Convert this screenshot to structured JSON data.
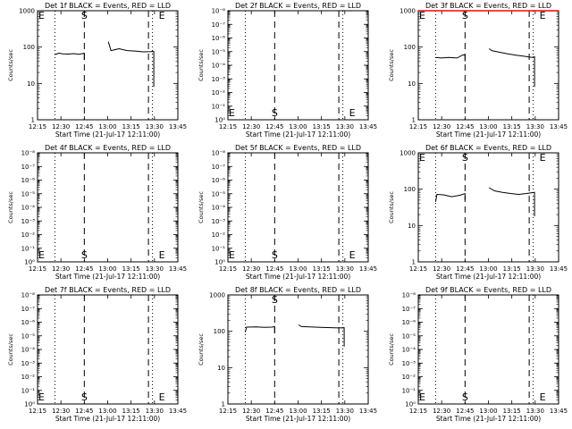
{
  "colors": {
    "events": "#000000",
    "lld": "#ff0000",
    "background": "#ffffff"
  },
  "chart_data": [
    {
      "type": "line",
      "title": "Det 1f BLACK = Events, RED = LLD",
      "xlabel": "Start Time (21-Jul-17 12:11:00)",
      "ylabel": "Counts/sec",
      "yscale": "log",
      "ylim": [
        1,
        1000
      ],
      "ytick_labels": [
        "1",
        "10",
        "100",
        "1000"
      ],
      "xticks": [
        "12:15",
        "12:30",
        "12:45",
        "13:00",
        "13:15",
        "13:30",
        "13:45"
      ],
      "xlim": [
        3,
        108
      ],
      "dotted_lines": [
        16,
        89
      ],
      "dashed_lines": [
        38,
        86
      ],
      "markers": [
        {
          "label": "E",
          "x": 3,
          "pos": "top"
        },
        {
          "label": "S",
          "x": 38,
          "pos": "top"
        },
        {
          "label": "E",
          "x": 96,
          "pos": "top"
        }
      ],
      "series": [
        {
          "color": "#000000",
          "segments": [
            [
              [
                16,
                62
              ],
              [
                19,
                68
              ],
              [
                22,
                65
              ],
              [
                26,
                64
              ],
              [
                30,
                66
              ],
              [
                34,
                63
              ],
              [
                38,
                68
              ],
              [
                38,
                45
              ]
            ],
            [
              [
                56,
                140
              ],
              [
                58,
                80
              ],
              [
                64,
                90
              ],
              [
                70,
                80
              ],
              [
                76,
                78
              ],
              [
                82,
                74
              ],
              [
                88,
                75
              ],
              [
                89,
                76
              ],
              [
                90,
                75
              ],
              [
                90,
                8
              ]
            ]
          ]
        }
      ]
    },
    {
      "type": "line",
      "title": "Det 2f BLACK = Events, RED = LLD",
      "xlabel": "Start Time (21-Jul-17 12:11:00)",
      "ylabel": "Counts/sec",
      "yscale": "log",
      "ylim": [
        0,
        1
      ],
      "ytick_labels": [
        "10⁰",
        "10⁻¹",
        "10⁻²",
        "10⁻³",
        "10⁻⁴",
        "10⁻⁵",
        "10⁻⁶",
        "10⁻⁷",
        "10⁻⁸"
      ],
      "xticks": [
        "12:15",
        "12:30",
        "12:45",
        "13:00",
        "13:15",
        "13:30",
        "13:45"
      ],
      "xlim": [
        3,
        108
      ],
      "dotted_lines": [
        16,
        89
      ],
      "dashed_lines": [
        38,
        86
      ],
      "markers": [
        {
          "label": "E",
          "x": 3,
          "pos": "bottom"
        },
        {
          "label": "S",
          "x": 38,
          "pos": "bottom"
        },
        {
          "label": "E",
          "x": 96,
          "pos": "bottom"
        }
      ],
      "series": []
    },
    {
      "type": "line",
      "title": "Det 3f BLACK = Events, RED = LLD",
      "xlabel": "Start Time (21-Jul-17 12:11:00)",
      "ylabel": "Counts/sec",
      "yscale": "log",
      "ylim": [
        1,
        1000
      ],
      "ytick_labels": [
        "1",
        "10",
        "100",
        "1000"
      ],
      "xticks": [
        "12:15",
        "12:30",
        "12:45",
        "13:00",
        "13:15",
        "13:30",
        "13:45"
      ],
      "xlim": [
        3,
        108
      ],
      "dotted_lines": [
        16,
        89
      ],
      "dashed_lines": [
        38,
        86
      ],
      "markers": [
        {
          "label": "E",
          "x": 3,
          "pos": "top"
        },
        {
          "label": "S",
          "x": 38,
          "pos": "top"
        },
        {
          "label": "E",
          "x": 96,
          "pos": "top"
        }
      ],
      "series": [
        {
          "color": "#ff0000",
          "segments": [
            [
              [
                3,
                1000
              ],
              [
                108,
                1000
              ]
            ]
          ]
        },
        {
          "color": "#000000",
          "segments": [
            [
              [
                16,
                52
              ],
              [
                20,
                50
              ],
              [
                26,
                52
              ],
              [
                32,
                50
              ],
              [
                36,
                60
              ],
              [
                38,
                62
              ],
              [
                38,
                40
              ]
            ],
            [
              [
                56,
                90
              ],
              [
                58,
                80
              ],
              [
                64,
                72
              ],
              [
                70,
                65
              ],
              [
                76,
                60
              ],
              [
                82,
                56
              ],
              [
                88,
                52
              ],
              [
                90,
                54
              ],
              [
                90,
                8
              ]
            ]
          ]
        }
      ]
    },
    {
      "type": "line",
      "title": "Det 4f BLACK = Events, RED = LLD",
      "xlabel": "Start Time (21-Jul-17 12:11:00)",
      "ylabel": "Counts/sec",
      "yscale": "log",
      "ylim": [
        0,
        1
      ],
      "ytick_labels": [
        "10⁰",
        "10⁻¹",
        "10⁻²",
        "10⁻³",
        "10⁻⁴",
        "10⁻⁵",
        "10⁻⁶",
        "10⁻⁷",
        "10⁻⁸"
      ],
      "xticks": [
        "12:15",
        "12:30",
        "12:45",
        "13:00",
        "13:15",
        "13:30",
        "13:45"
      ],
      "xlim": [
        3,
        108
      ],
      "dotted_lines": [
        16,
        89
      ],
      "dashed_lines": [
        38,
        86
      ],
      "markers": [
        {
          "label": "E",
          "x": 3,
          "pos": "bottom"
        },
        {
          "label": "S",
          "x": 38,
          "pos": "bottom"
        },
        {
          "label": "E",
          "x": 96,
          "pos": "bottom"
        }
      ],
      "series": []
    },
    {
      "type": "line",
      "title": "Det 5f BLACK = Events, RED = LLD",
      "xlabel": "Start Time (21-Jul-17 12:11:00)",
      "ylabel": "Counts/sec",
      "yscale": "log",
      "ylim": [
        0,
        1
      ],
      "ytick_labels": [
        "10⁰",
        "10⁻¹",
        "10⁻²",
        "10⁻³",
        "10⁻⁴",
        "10⁻⁵",
        "10⁻⁶",
        "10⁻⁷",
        "10⁻⁸"
      ],
      "xticks": [
        "12:15",
        "12:30",
        "12:45",
        "13:00",
        "13:15",
        "13:30",
        "13:45"
      ],
      "xlim": [
        3,
        108
      ],
      "dotted_lines": [
        16,
        89
      ],
      "dashed_lines": [
        38,
        86
      ],
      "markers": [
        {
          "label": "E",
          "x": 3,
          "pos": "bottom"
        },
        {
          "label": "S",
          "x": 38,
          "pos": "bottom"
        },
        {
          "label": "E",
          "x": 96,
          "pos": "bottom"
        }
      ],
      "series": []
    },
    {
      "type": "line",
      "title": "Det 6f BLACK = Events, RED = LLD",
      "xlabel": "Start Time (21-Jul-17 12:11:00)",
      "ylabel": "Counts/sec",
      "yscale": "log",
      "ylim": [
        1,
        1000
      ],
      "ytick_labels": [
        "1",
        "10",
        "100",
        "1000"
      ],
      "xticks": [
        "12:15",
        "12:30",
        "12:45",
        "13:00",
        "13:15",
        "13:30",
        "13:45"
      ],
      "xlim": [
        3,
        108
      ],
      "dotted_lines": [
        16,
        89
      ],
      "dashed_lines": [
        38,
        86
      ],
      "markers": [
        {
          "label": "E",
          "x": 3,
          "pos": "top"
        },
        {
          "label": "S",
          "x": 38,
          "pos": "top"
        },
        {
          "label": "E",
          "x": 96,
          "pos": "top"
        }
      ],
      "series": [
        {
          "color": "#000000",
          "segments": [
            [
              [
                16,
                45
              ],
              [
                17,
                72
              ],
              [
                22,
                70
              ],
              [
                28,
                62
              ],
              [
                34,
                68
              ],
              [
                38,
                75
              ],
              [
                38,
                50
              ]
            ],
            [
              [
                56,
                110
              ],
              [
                60,
                90
              ],
              [
                66,
                82
              ],
              [
                72,
                76
              ],
              [
                78,
                72
              ],
              [
                84,
                76
              ],
              [
                88,
                80
              ],
              [
                90,
                82
              ],
              [
                90,
                18
              ]
            ]
          ]
        }
      ]
    },
    {
      "type": "line",
      "title": "Det 7f BLACK = Events, RED = LLD",
      "xlabel": "Start Time (21-Jul-17 12:11:00)",
      "ylabel": "Counts/sec",
      "yscale": "log",
      "ylim": [
        0,
        1
      ],
      "ytick_labels": [
        "10⁰",
        "10⁻¹",
        "10⁻²",
        "10⁻³",
        "10⁻⁴",
        "10⁻⁵",
        "10⁻⁶",
        "10⁻⁷",
        "10⁻⁸"
      ],
      "xticks": [
        "12:15",
        "12:30",
        "12:45",
        "13:00",
        "13:15",
        "13:30",
        "13:45"
      ],
      "xlim": [
        3,
        108
      ],
      "dotted_lines": [
        16,
        89
      ],
      "dashed_lines": [
        38,
        86
      ],
      "markers": [
        {
          "label": "E",
          "x": 3,
          "pos": "bottom"
        },
        {
          "label": "S",
          "x": 38,
          "pos": "bottom"
        },
        {
          "label": "E",
          "x": 96,
          "pos": "bottom"
        }
      ],
      "series": []
    },
    {
      "type": "line",
      "title": "Det 8f BLACK = Events, RED = LLD",
      "xlabel": "Start Time (21-Jul-17 12:11:00)",
      "ylabel": "Counts/sec",
      "yscale": "log",
      "ylim": [
        1,
        1000
      ],
      "ytick_labels": [
        "1",
        "10",
        "100",
        "1000"
      ],
      "xticks": [
        "12:15",
        "12:30",
        "12:45",
        "13:00",
        "13:15",
        "13:30",
        "13:45"
      ],
      "xlim": [
        3,
        108
      ],
      "dotted_lines": [
        16,
        89
      ],
      "dashed_lines": [
        38,
        86
      ],
      "markers": [
        {
          "label": "S",
          "x": 38,
          "pos": "top"
        }
      ],
      "series": [
        {
          "color": "#000000",
          "segments": [
            [
              [
                16,
                95
              ],
              [
                17,
                130
              ],
              [
                24,
                132
              ],
              [
                30,
                128
              ],
              [
                36,
                130
              ],
              [
                38,
                135
              ],
              [
                38,
                90
              ]
            ],
            [
              [
                56,
                150
              ],
              [
                58,
                135
              ],
              [
                64,
                132
              ],
              [
                72,
                128
              ],
              [
                80,
                126
              ],
              [
                86,
                124
              ],
              [
                90,
                125
              ],
              [
                90,
                38
              ]
            ]
          ]
        }
      ]
    },
    {
      "type": "line",
      "title": "Det 9f BLACK = Events, RED = LLD",
      "xlabel": "Start Time (21-Jul-17 12:11:00)",
      "ylabel": "Counts/sec",
      "yscale": "log",
      "ylim": [
        0,
        1
      ],
      "ytick_labels": [
        "10⁰",
        "10⁻¹",
        "10⁻²",
        "10⁻³",
        "10⁻⁴",
        "10⁻⁵",
        "10⁻⁶",
        "10⁻⁷",
        "10⁻⁸"
      ],
      "xticks": [
        "12:15",
        "12:30",
        "12:45",
        "13:00",
        "13:15",
        "13:30",
        "13:45"
      ],
      "xlim": [
        3,
        108
      ],
      "dotted_lines": [
        16,
        89
      ],
      "dashed_lines": [
        38,
        86
      ],
      "markers": [
        {
          "label": "E",
          "x": 3,
          "pos": "bottom"
        },
        {
          "label": "S",
          "x": 38,
          "pos": "bottom"
        },
        {
          "label": "E",
          "x": 96,
          "pos": "bottom"
        }
      ],
      "series": []
    }
  ]
}
